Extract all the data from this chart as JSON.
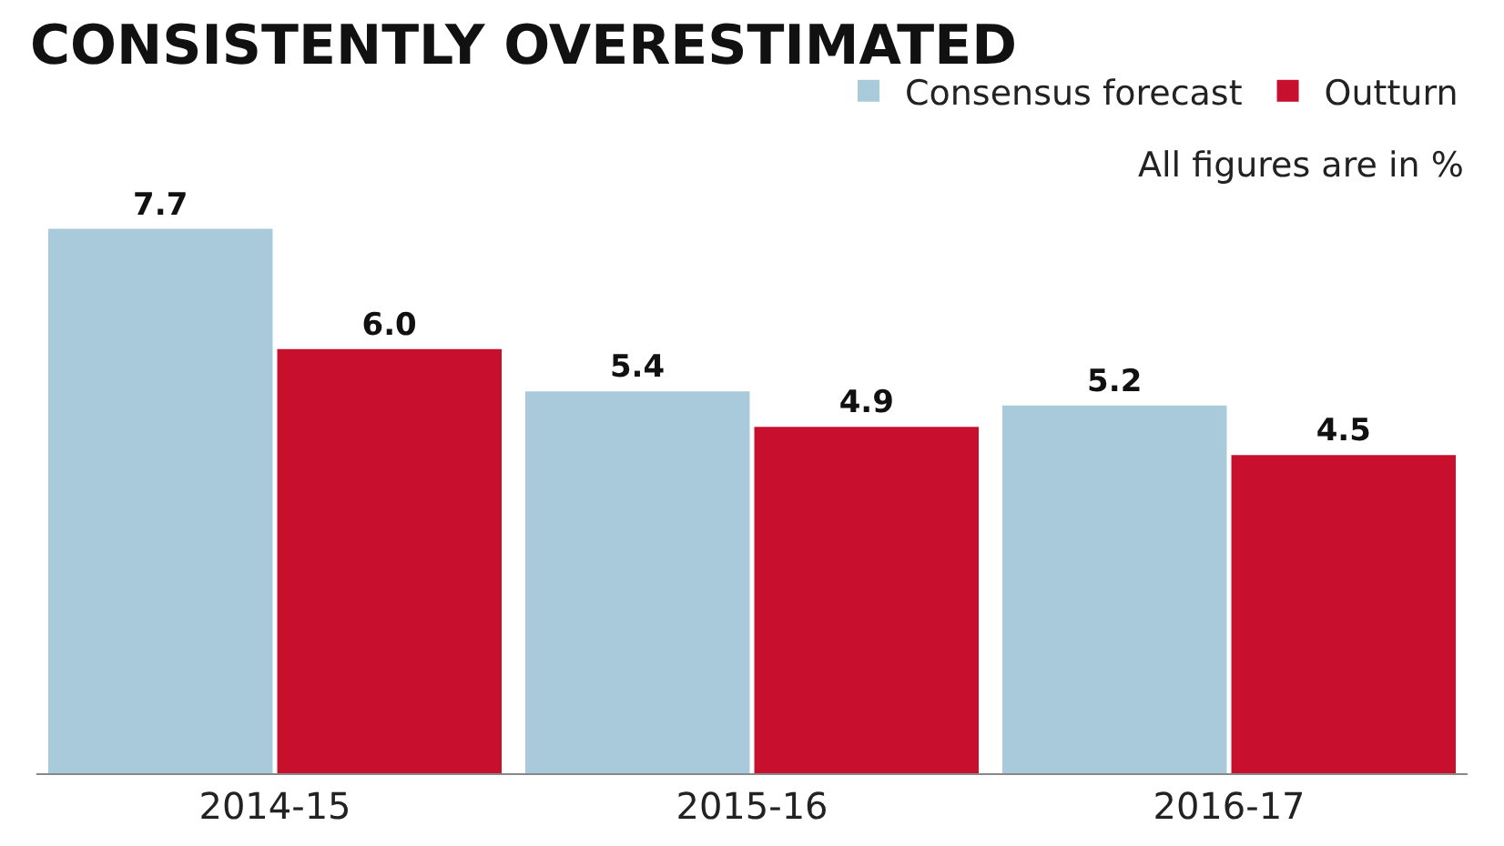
{
  "chart_data": {
    "type": "bar",
    "title": "CONSISTENTLY OVERESTIMATED",
    "categories": [
      "2014-15",
      "2015-16",
      "2016-17"
    ],
    "series": [
      {
        "name": "Consensus forecast",
        "color": "#a9cadb",
        "values": [
          7.7,
          5.4,
          5.2
        ],
        "value_labels": [
          "7.7",
          "5.4",
          "5.2"
        ]
      },
      {
        "name": "Outturn",
        "color": "#c8102e",
        "values": [
          6.0,
          4.9,
          4.5
        ],
        "value_labels": [
          "6.0",
          "4.9",
          "4.5"
        ]
      }
    ],
    "legend": "top right",
    "tick_labels": "x",
    "annotations": [
      "All figures are in %"
    ]
  }
}
